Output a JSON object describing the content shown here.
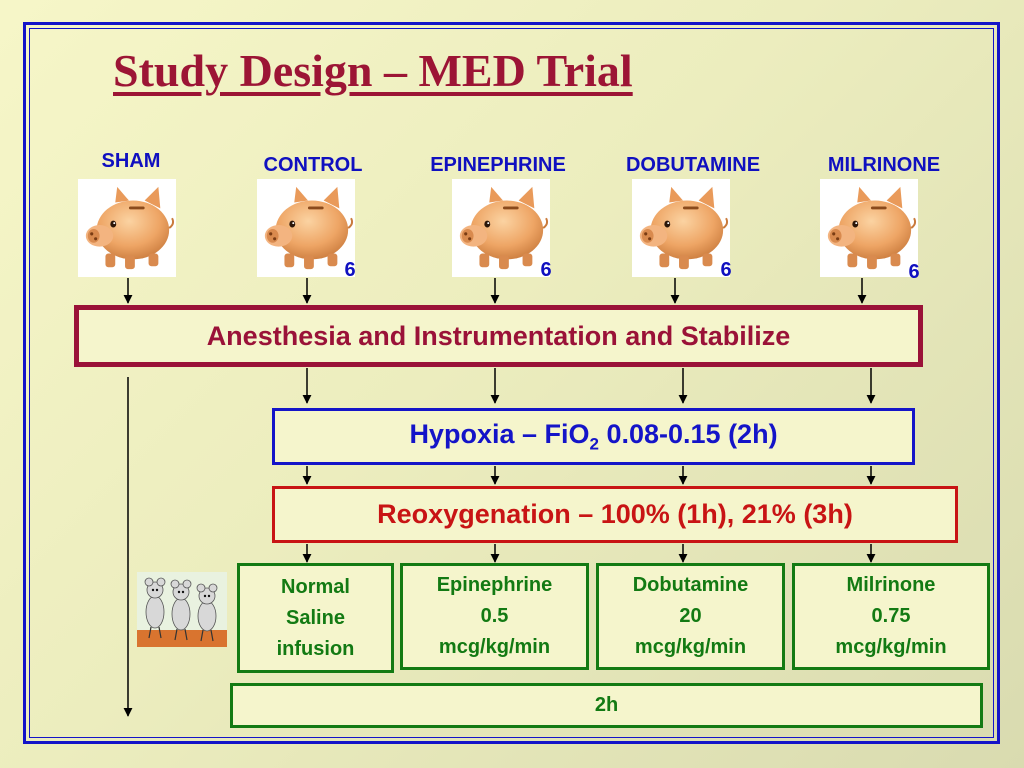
{
  "title": "Study Design – MED Trial",
  "groups": [
    {
      "name": "SHAM",
      "n": ""
    },
    {
      "name": "CONTROL",
      "n": "6"
    },
    {
      "name": "EPINEPHRINE",
      "n": "6"
    },
    {
      "name": "DOBUTAMINE",
      "n": "6"
    },
    {
      "name": "MILRINONE",
      "n": "6"
    }
  ],
  "steps": {
    "anesthesia": "Anesthesia and Instrumentation and Stabilize",
    "hypoxia": {
      "prefix": "Hypoxia – FiO",
      "sub": "2",
      "suffix": " 0.08-0.15 (2h)"
    },
    "reoxygenation": "Reoxygenation – 100% (1h), 21% (3h)"
  },
  "treatments": [
    {
      "lines": [
        "Normal",
        "Saline",
        "infusion"
      ]
    },
    {
      "lines": [
        "Epinephrine",
        "0.5",
        "mcg/kg/min"
      ]
    },
    {
      "lines": [
        "Dobutamine",
        "20",
        "mcg/kg/min"
      ]
    },
    {
      "lines": [
        "Milrinone",
        "0.75",
        "mcg/kg/min"
      ]
    }
  ],
  "duration": "2h",
  "colors": {
    "title": "#9c1535",
    "labels": "#1010c0",
    "anesthesia": "#9a1238",
    "hypoxia": "#1414c8",
    "reoxygenation": "#c81414",
    "treatment": "#137a13"
  },
  "icons": {
    "group_image": "piggy-bank-pig",
    "side_image": "mice-group"
  }
}
